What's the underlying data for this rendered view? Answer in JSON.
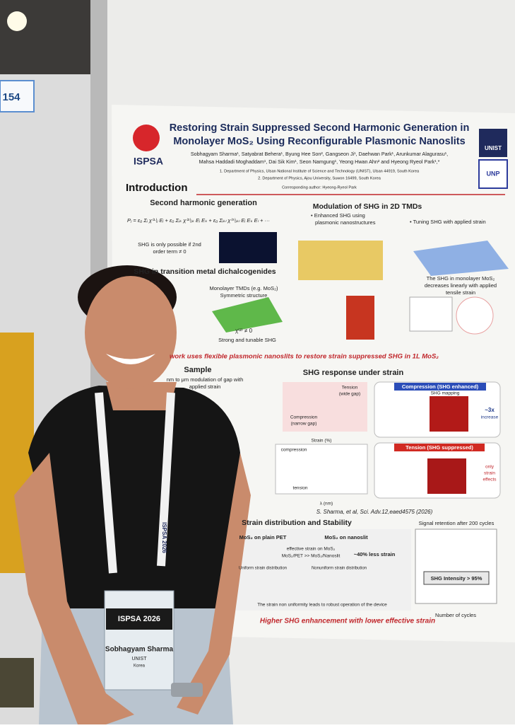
{
  "booth_sign": "154",
  "poster": {
    "logo_left": "ISPSA",
    "logo_right": [
      "UNIST",
      "UNP"
    ],
    "title_lines": [
      "Restoring Strain Suppressed Second Harmonic Generation in",
      "Monolayer MoS₂ Using Reconfigurable Plasmonic Nanoslits"
    ],
    "authors": [
      "Sobhagyam Sharma¹, Satyabrat Behera¹, Byung Hee Son², Gangseon Ji¹, Daehwan Park¹, Arunkumar Alagurasu¹,",
      "Mahsa Haddadi Moghaddam¹, Dai Sik Kim¹, Seon Namgung¹, Yeong Hwan Ahn² and Hyeong Ryeol Park¹,*"
    ],
    "affiliations": [
      "1. Department of Physics, Ulsan National Institute of Science and Technology (UNIST), Ulsan 44919, South Korea",
      "2. Department of Physics, Ajou University, Suwon 16499, South Korea"
    ],
    "corresponding": "Corresponding author: Hyeong-Ryeol Park",
    "introduction": {
      "heading": "Introduction",
      "shg_heading": "Second harmonic generation",
      "equation": "Pⱼ = ε₀ Σᵢ χ⁽¹⁾ᵢⱼ Eᵢ + ε₀ Σᵢₖ χ⁽²⁾ᵢⱼₖ Eᵢ Eₖ + ε₀ Σᵢₖₗ χ⁽³⁾ᵢⱼₖₗ Eᵢ Eₖ Eₗ + ···",
      "shg_note": [
        "SHG is only possible if 2nd",
        "order term ≠ 0"
      ],
      "tmd_heading": "SHG in transition metal dichalcogenides",
      "tmd_labels": [
        "Monolayer TMDs (e.g. MoS₂)",
        "Symmetric structure",
        "χ⁽²⁾ ≠ 0",
        "Strong and tunable SHG"
      ],
      "modulation_heading": "Modulation of SHG in 2D TMDs",
      "modulation_bullets": [
        "• Enhanced SHG using",
        "plasmonic nanostructures",
        "• Tuning SHG with applied strain"
      ],
      "strain_note": [
        "The SHG in monolayer MoS₂",
        "decreases linearly with applied",
        "tensile strain"
      ],
      "goal": "work uses flexible plasmonic nanoslits to restore strain suppressed SHG in 1L MoS₂"
    },
    "sample": {
      "heading": "Sample",
      "caption": [
        "nm to μm modulation of gap with",
        "applied strain"
      ]
    },
    "response": {
      "heading": "SHG response under strain",
      "axis_labels": [
        "Strain (%)",
        "λ (nm)",
        "compression",
        "tension",
        "Compression",
        "(narrow gap)",
        "Tension",
        "(wide gap)"
      ],
      "compression_banner": "Compression (SHG enhanced)",
      "tension_banner": "Tension (SHG suppressed)",
      "mapping": "SHG mapping",
      "increase": [
        "~3x",
        "increase"
      ],
      "only_strain": [
        "only",
        "strain",
        "effects"
      ],
      "reference": "S. Sharma, et al, Sci. Adv.12,eaed4575 (2026)"
    },
    "stability": {
      "heading": "Strain distribution and Stability",
      "retention": "Signal retention after 200 cycles",
      "pet": "MoS₂ on plain PET",
      "nanoslit": "MoS₂ on nanoslit",
      "effective": [
        "effective strain on MoS₂",
        "MoS₂/PET >> MoS₂/Nanoslit"
      ],
      "less": "~40% less strain",
      "uniform": "Uniform strain distribution",
      "nonuniform": "Nonuniform strain distribution",
      "intensity": "SHG Intensity > 95%",
      "cycles": "Number of cycles",
      "robust": "The strain non uniformity leads to robust operation of the device",
      "conclusion": "Higher SHG enhancement with lower effective strain"
    }
  },
  "badge": {
    "event": "ISPSA 2026",
    "name": "Sobhagyam Sharma",
    "affiliation": "UNIST",
    "country": "Korea"
  },
  "lanyard": "ISPSA 2026"
}
